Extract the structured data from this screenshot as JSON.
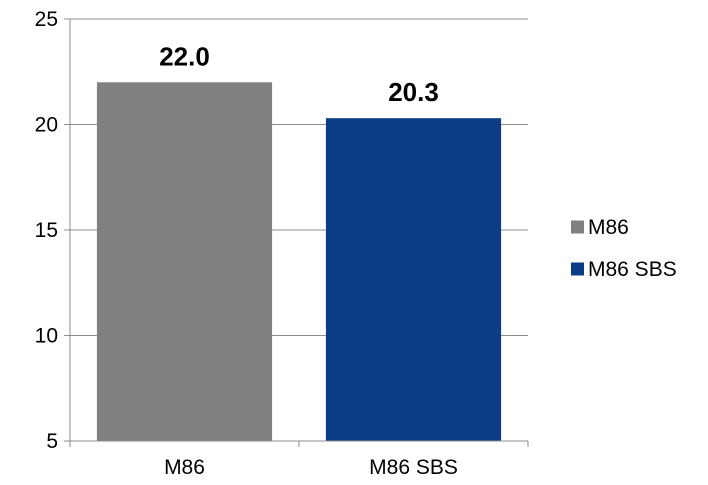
{
  "chart_data": {
    "type": "bar",
    "categories": [
      "M86",
      "M86 SBS"
    ],
    "values": [
      22.0,
      20.3
    ],
    "data_labels": [
      "22.0",
      "20.3"
    ],
    "colors": [
      "#808080",
      "#0A3D85"
    ],
    "ylim": [
      5,
      25
    ],
    "y_ticks": [
      "5",
      "10",
      "15",
      "20",
      "25"
    ],
    "grid": true,
    "legend": {
      "placement": "right",
      "entries": [
        {
          "label": "M86",
          "color": "#808080"
        },
        {
          "label": "M86 SBS",
          "color": "#0A3D85"
        }
      ]
    }
  }
}
